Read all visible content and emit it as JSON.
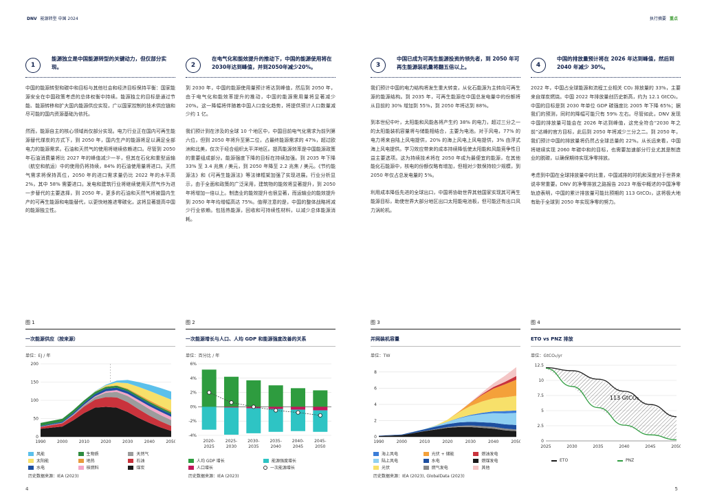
{
  "header": {
    "brand": "DNV",
    "doc_title": "能源转型 中国 2024",
    "right_label": "执行摘要",
    "right_highlight": "重点"
  },
  "columns": [
    {
      "num": "1",
      "title": "能源独立是中国能源转型的关键动力，但仅部分实现。",
      "paras": [
        "中国的能源转型和碳中和目标与其他社会和经济目标保持平衡：国家能源安全在中国政策考虑的总体权衡中持续。能源独立的目标是通过节能、能源转移和扩大国内能源供应实现，广以国家控制的技术供应链和尽可能的国内资源基础为依托。",
        "然而，能源自主的核心领域尚仅部分实现。电力行业正在国内可再生能源替代煤炭的方式下，到 2050 年，国内生产的能源将足以满足全部电力的能源需求。石油和天然气的使用将继续依赖进口。尽管到 2050 年石油消费量将比 2027 年的峰值减少一半，但其在石化和重型运输（航空和航运）中的使用仍将持续，84% 的石油使用量将进口。天然气需求将保持高位，2050 年的进口需求量仍比 2022 年的水平高 2%，其中 58% 需要进口。发电和建筑行业将继续使用天然气作为进一步替代的主要选择，到 2050 年，更多的石油和天然气将被国内生产的可再生能源和电能替代，以更快地推进零碳化，这将显著提高中国的能源独立性。"
      ]
    },
    {
      "num": "2",
      "title": "在电气化和能效提升的推动下，中国的能源使用将在2030年达到峰值，并到2050年减少20%。",
      "paras": [
        "到 2030 年，中国的能源使用量预计将达到峰值，然后到 2050 年，由于电气化和能效率提升的推动，中国的能源需用量将显著减少 20%。这一降幅将伴随着中国人口变化趋势，将提供预计人口数量减少约 1 亿。",
        "我们预计到在涉及的全球 10 个地区中，中国目前电气化需求为前列第六位，但到 2050 年将升至第二位，占最终能源需求的 47%，超过欧洲和北美，仅次于经合组织太平洋地区。提高能源效率是中国能源政策的重要组成部分。能源强度下降的目标在持续加强。到 2035 年下降 33% 至 3.4 兆焦 / 美元，到 2050 年降至 2.2 兆焦 / 美元。《节约能源法》和《可再生能源法》等法律框架加强了实现进展。行业分析显示，由于全面和政策的广泛采用，建筑物的能效将显著提升，到 2050 年将增加一倍以上。制造业的能效提升也很显著，而运输业的能效提升到 2050 年年均增幅高达 75%。值得注意的是，中国的整体战略将减少行业依赖。包括热能源，回收和可持续性材料，以减少总体能源消耗。"
      ]
    },
    {
      "num": "3",
      "title": "中国已成为可再生能源投资的领先者，到 2050 年可再生能源装机量将翻五倍以上。",
      "paras": [
        "我们预计中国的电力结构将发生重大转变，从化石能源为主转向可再生源的能源结构。到 2035 年，可再生能源在中国总发电量中的份额将从目前的 30% 增加到 55%，到 2050 年将达到 88%。",
        "到本世纪中叶，太阳能和风能各将产生约 38% 的电力，超过三分之一的太阳能装机容量将与储能相结合，主要为电池。对于风电，77% 的电力将来自陆上风电提供，20% 的海上风电上风电提供，3% 由浮式海上风电提供。学习效应带来的成本持续降低使太阳能和风能竞争性日益主要选项。这为持续技术将在 2050 年成为最便宜的能源，在其他能化石能源中，核电的份额仅略有增加，但相对少数保持较少规模，到 2050 年仅占总发电量的 5%。",
        "利用成本降低先进的全球出口，中国将协助世界其他国家实现其可再生能源目标，助使世界大部分地区出口太阳能电池板，但可能还有出口风力涡轮机。"
      ]
    },
    {
      "num": "4",
      "title": "中国的排放量预计将在 2026 年达到峰值，然后到 2040 年减少 30%。",
      "paras": [
        "2022 年，中国占全球能源和流程工业相关 CO₂ 排放量的 33%，主要来自煤炭燃烧。中国 2022 年排放量创历史新高，约为 12.1 GtCO₂。中国的目标是到 2030 年单位 GDP 碳强度比 2005 年下降 65%；据我们的预测，同时的降幅可能只有 59% 左右。尽管如此，DNV 发现中国的排放量可能会在 2026 年达到峰值，这完全符合“2030 年之前”达峰的官方目标，此后到 2050 年将减少三分之二。到 2050 年，我们预计中国的排放量将仍然占全球总量的 22%。从长远来看，中国将继续实现 2060 年碳中和的目标，也需要加速部分行业尤其是制造业的脱碳，以确保期待实现净零排放。",
        "考虑到中国在全球排放量中的比重，中国减排的时机和深度对于世界来说非常重要。DNV 的净零排放之路报告 2023 年版中概述的中国净零轨迹表明，中国的累计排放量可能比预期的 113 GtCO₂，这将极大地有助于全球到 2050 年实现净零的努力。"
      ]
    }
  ],
  "figures": [
    {
      "num": "图 1",
      "title": "一次能源供应（按来源）",
      "unit": "单位：EJ / 年",
      "legend": [
        {
          "label": "风能",
          "color": "#5bc0eb"
        },
        {
          "label": "生物质",
          "color": "#2e8b3e"
        },
        {
          "label": "天然气",
          "color": "#9c9c9c"
        },
        {
          "label": "太阳能",
          "color": "#f7e06a"
        },
        {
          "label": "地热",
          "color": "#e89a3c"
        },
        {
          "label": "石油",
          "color": "#c9333c"
        },
        {
          "label": "水电",
          "color": "#1d4fa0"
        },
        {
          "label": "核燃料",
          "color": "#f4a6c8"
        },
        {
          "label": "煤炭",
          "color": "#1a1a1a"
        }
      ],
      "source": "历史数据来源：IEA (2023)"
    },
    {
      "num": "图 2",
      "title": "一次能源增长与人口、人均 GDP 和能源强度改善的关系",
      "unit": "单位：百分比 / 年",
      "legend": [
        {
          "label": "人均 GDP 增长",
          "color": "#2e9c3f"
        },
        {
          "label": "能源强度增长",
          "color": "#2ec4c4"
        },
        {
          "label": "人口增长",
          "color": "#c2185b"
        },
        {
          "label": "一次能源增长",
          "color": "#ffffff"
        }
      ],
      "source": "历史数据来源：IEA (2023)"
    },
    {
      "num": "图 3",
      "title": "并网装机容量",
      "unit": "单位：TW",
      "legend": [
        {
          "label": "海上风电",
          "color": "#3b7dd8"
        },
        {
          "label": "光伏 + 储能",
          "color": "#f4a13a"
        },
        {
          "label": "燃油发电",
          "color": "#c9333c"
        },
        {
          "label": "陆上风电",
          "color": "#8fd0f2"
        },
        {
          "label": "水电",
          "color": "#1d4fa0"
        },
        {
          "label": "燃煤发电",
          "color": "#1a1a1a"
        },
        {
          "label": "光伏",
          "color": "#f7e06a"
        },
        {
          "label": "燃气发电",
          "color": "#8a8a8a"
        },
        {
          "label": "其他",
          "color": "#f4c6c6"
        }
      ],
      "source": "历史数据来源：IEA (2023), GlobalData (2023)"
    },
    {
      "num": "图 4",
      "title": "ETO vs PNZ 排放",
      "unit": "单位：GtCO₂/yr",
      "legend": [
        {
          "label": "ETO",
          "color": "#1a1a1a"
        },
        {
          "label": "PNZ",
          "color": "#2e9c3f"
        }
      ],
      "source": ""
    }
  ],
  "chart_data": [
    {
      "type": "area",
      "title": "一次能源供应（按来源）",
      "ylabel": "EJ / 年",
      "ylim": [
        0,
        200
      ],
      "x": [
        1990,
        2000,
        2005,
        2010,
        2015,
        2020,
        2025,
        2030,
        2035,
        2040,
        2045,
        2050
      ],
      "series": [
        {
          "name": "煤炭",
          "values": [
            22,
            28,
            45,
            65,
            80,
            82,
            80,
            68,
            52,
            38,
            26,
            16
          ]
        },
        {
          "name": "石油",
          "values": [
            5,
            9,
            13,
            18,
            22,
            27,
            28,
            27,
            24,
            20,
            17,
            14
          ]
        },
        {
          "name": "天然气",
          "values": [
            1,
            1,
            2,
            4,
            7,
            12,
            15,
            17,
            18,
            18,
            17,
            16
          ]
        },
        {
          "name": "核燃料",
          "values": [
            0,
            0.5,
            1,
            1,
            2,
            4,
            5,
            6,
            7,
            8,
            9,
            9
          ]
        },
        {
          "name": "水电",
          "values": [
            2,
            3,
            4,
            5,
            6,
            7,
            7,
            7,
            7,
            7,
            7,
            7
          ]
        },
        {
          "name": "生物质",
          "values": [
            8,
            8,
            8,
            7,
            6,
            5,
            5,
            5,
            5,
            5,
            5,
            5
          ]
        },
        {
          "name": "地热",
          "values": [
            0,
            0,
            0,
            0,
            0,
            1,
            1,
            2,
            3,
            4,
            4,
            4
          ]
        },
        {
          "name": "太阳能",
          "values": [
            0,
            0,
            0,
            0,
            1,
            3,
            8,
            15,
            21,
            26,
            29,
            31
          ]
        },
        {
          "name": "风能",
          "values": [
            0,
            0,
            0,
            0,
            1,
            2,
            5,
            9,
            13,
            17,
            20,
            22
          ]
        }
      ]
    },
    {
      "type": "bar",
      "title": "一次能源增长与人口、人均 GDP 和能源强度改善的关系",
      "ylabel": "百分比 / 年",
      "ylim": [
        -4,
        6
      ],
      "categories": [
        "2020-2025",
        "2025-2030",
        "2030-2035",
        "2035-2040",
        "2040-2045",
        "2045-2050"
      ],
      "series": [
        {
          "name": "人均 GDP 增长",
          "values": [
            5.2,
            4.2,
            3.7,
            3.0,
            2.6,
            2.3
          ]
        },
        {
          "name": "人口增长",
          "values": [
            0.0,
            -0.1,
            -0.2,
            -0.3,
            -0.4,
            -0.5
          ]
        },
        {
          "name": "能源强度增长",
          "values": [
            -3.2,
            -3.8,
            -3.5,
            -3.2,
            -3.0,
            -3.0
          ]
        },
        {
          "name": "一次能源增长",
          "values": [
            2.0,
            0.6,
            0.0,
            -0.5,
            -0.8,
            -1.2
          ]
        }
      ]
    },
    {
      "type": "area",
      "title": "并网装机容量",
      "ylabel": "TW",
      "ylim": [
        0,
        9
      ],
      "x": [
        1990,
        2000,
        2010,
        2015,
        2020,
        2025,
        2030,
        2035,
        2040,
        2045,
        2050
      ],
      "series": [
        {
          "name": "燃煤发电",
          "values": [
            0.1,
            0.2,
            0.7,
            0.9,
            1.1,
            1.2,
            1.2,
            1.1,
            1.0,
            0.8,
            0.7
          ]
        },
        {
          "name": "燃气发电",
          "values": [
            0,
            0,
            0.03,
            0.06,
            0.1,
            0.15,
            0.2,
            0.22,
            0.22,
            0.22,
            0.2
          ]
        },
        {
          "name": "水电",
          "values": [
            0.04,
            0.08,
            0.2,
            0.3,
            0.37,
            0.42,
            0.45,
            0.47,
            0.5,
            0.52,
            0.55
          ]
        },
        {
          "name": "陆上风电",
          "values": [
            0,
            0,
            0.03,
            0.13,
            0.28,
            0.5,
            0.75,
            1.0,
            1.2,
            1.35,
            1.5
          ]
        },
        {
          "name": "海上风电",
          "values": [
            0,
            0,
            0,
            0,
            0.01,
            0.05,
            0.1,
            0.16,
            0.22,
            0.28,
            0.3
          ]
        },
        {
          "name": "光伏",
          "values": [
            0,
            0,
            0,
            0.04,
            0.25,
            0.7,
            1.1,
            1.4,
            1.6,
            1.7,
            1.8
          ]
        },
        {
          "name": "光伏 + 储能",
          "values": [
            0,
            0,
            0,
            0,
            0,
            0.1,
            0.4,
            0.8,
            1.2,
            1.6,
            2.0
          ]
        },
        {
          "name": "燃油发电",
          "values": [
            0,
            0,
            0,
            0,
            0,
            0,
            0.02,
            0.1,
            0.2,
            0.3,
            0.45
          ]
        },
        {
          "name": "其他",
          "values": [
            0,
            0,
            0,
            0,
            0,
            0,
            0.05,
            0.2,
            0.45,
            0.75,
            1.1
          ]
        }
      ]
    },
    {
      "type": "line",
      "title": "ETO vs PNZ 排放",
      "ylabel": "GtCO₂/yr",
      "ylim": [
        0,
        12.5
      ],
      "x": [
        2025,
        2030,
        2035,
        2040,
        2045,
        2050
      ],
      "annotation": "113 GtCO₂",
      "series": [
        {
          "name": "ETO",
          "values": [
            12.1,
            11.6,
            10.2,
            8.2,
            6.0,
            4.0
          ]
        },
        {
          "name": "PNZ",
          "values": [
            12.0,
            9.0,
            5.5,
            2.6,
            1.0,
            0.2
          ]
        }
      ]
    }
  ],
  "page_numbers": {
    "left": "4",
    "right": "5"
  }
}
